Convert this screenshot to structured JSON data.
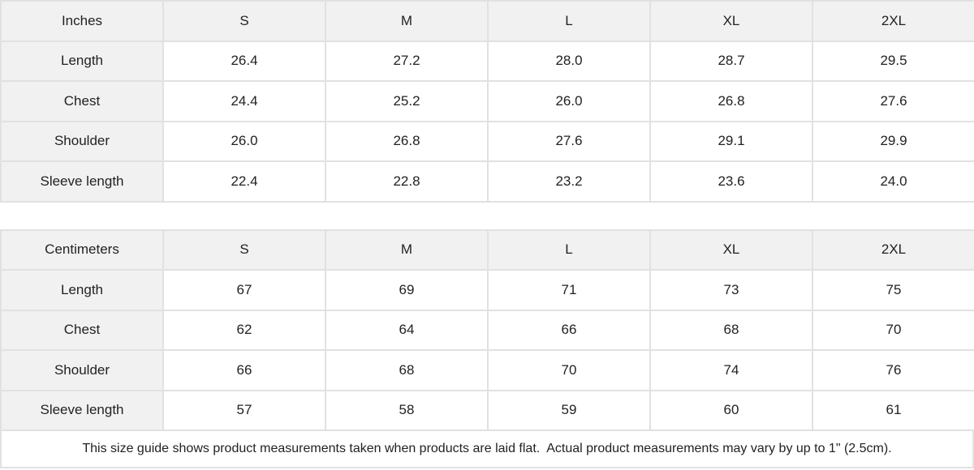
{
  "tables": [
    {
      "unit_label": "Inches",
      "sizes": [
        "S",
        "M",
        "L",
        "XL",
        "2XL"
      ],
      "rows": [
        {
          "label": "Length",
          "values": [
            "26.4",
            "27.2",
            "28.0",
            "28.7",
            "29.5"
          ]
        },
        {
          "label": "Chest",
          "values": [
            "24.4",
            "25.2",
            "26.0",
            "26.8",
            "27.6"
          ]
        },
        {
          "label": "Shoulder",
          "values": [
            "26.0",
            "26.8",
            "27.6",
            "29.1",
            "29.9"
          ]
        },
        {
          "label": "Sleeve length",
          "values": [
            "22.4",
            "22.8",
            "23.2",
            "23.6",
            "24.0"
          ]
        }
      ]
    },
    {
      "unit_label": "Centimeters",
      "sizes": [
        "S",
        "M",
        "L",
        "XL",
        "2XL"
      ],
      "rows": [
        {
          "label": "Length",
          "values": [
            "67",
            "69",
            "71",
            "73",
            "75"
          ]
        },
        {
          "label": "Chest",
          "values": [
            "62",
            "64",
            "66",
            "68",
            "70"
          ]
        },
        {
          "label": "Shoulder",
          "values": [
            "66",
            "68",
            "70",
            "74",
            "76"
          ]
        },
        {
          "label": "Sleeve length",
          "values": [
            "57",
            "58",
            "59",
            "60",
            "61"
          ]
        }
      ]
    }
  ],
  "footnote": "This size guide shows product measurements taken when products are laid flat.  Actual product measurements may vary by up to 1\" (2.5cm).",
  "colors": {
    "header_bg": "#f1f1f1",
    "cell_bg": "#ffffff",
    "border": "#e1e1e1",
    "text": "#222222"
  }
}
